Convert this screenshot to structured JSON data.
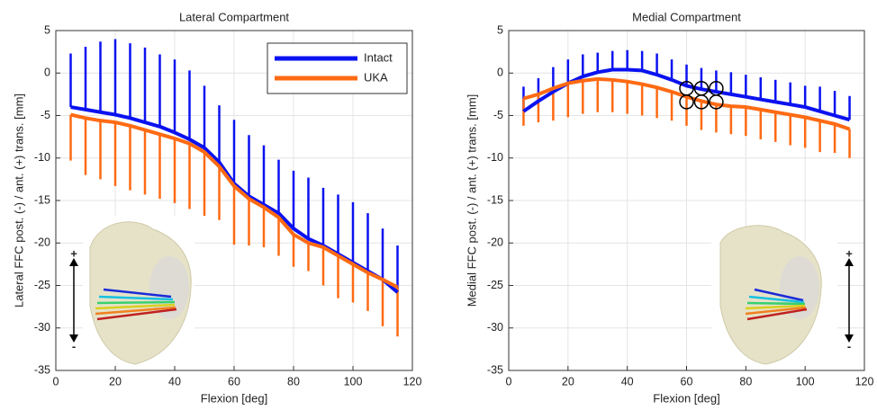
{
  "chart_data": [
    {
      "type": "line",
      "title": "Lateral Compartment",
      "xlabel": "Flexion [deg]",
      "ylabel": "Lateral FFC post. (-) / ant. (+) trans. [mm]",
      "x": [
        5,
        10,
        15,
        20,
        25,
        30,
        35,
        40,
        45,
        50,
        55,
        60,
        65,
        70,
        75,
        80,
        85,
        90,
        95,
        100,
        105,
        110,
        115
      ],
      "series": [
        {
          "name": "Intact",
          "color": "#0a12f0",
          "error_direction": "up",
          "values": [
            -4,
            -4.3,
            -4.6,
            -4.9,
            -5.3,
            -5.8,
            -6.3,
            -7,
            -7.8,
            -8.8,
            -10.5,
            -13,
            -14.5,
            -15.5,
            -16.5,
            -18.3,
            -19.5,
            -20.3,
            -21.3,
            -22.3,
            -23.3,
            -24.3,
            -25.8
          ],
          "errors": [
            6.3,
            7.4,
            8.3,
            8.9,
            8.8,
            8.8,
            8.5,
            8.6,
            8.1,
            7.3,
            6.7,
            7.5,
            7.2,
            7,
            6.3,
            6.8,
            7.2,
            6.8,
            7,
            7.1,
            6.8,
            6,
            5.5
          ]
        },
        {
          "name": "UKA",
          "color": "#ff6a13",
          "error_direction": "down",
          "values": [
            -4.9,
            -5.3,
            -5.6,
            -5.8,
            -6.2,
            -6.7,
            -7.2,
            -7.7,
            -8.3,
            -9.3,
            -11,
            -13.3,
            -14.8,
            -15.8,
            -17,
            -19,
            -20,
            -20.5,
            -21.5,
            -22.5,
            -23.5,
            -24.3,
            -25.2
          ],
          "errors": [
            5.4,
            6.7,
            6.9,
            7.5,
            7.6,
            7.6,
            7.6,
            7.6,
            7.7,
            7.5,
            6.3,
            6.9,
            5.5,
            4.7,
            4.5,
            3.8,
            3.3,
            4.5,
            5,
            4.5,
            4.5,
            5.5,
            5.8
          ]
        }
      ],
      "xlim": [
        0,
        120
      ],
      "xticks": [
        0,
        20,
        40,
        60,
        80,
        100,
        120
      ],
      "ylim": [
        -35,
        5
      ],
      "yticks": [
        -35,
        -30,
        -25,
        -20,
        -15,
        -10,
        -5,
        0,
        5
      ],
      "grid": true,
      "legend": "upper right",
      "inset": {
        "plus": "+",
        "minus": "-"
      }
    },
    {
      "type": "line",
      "title": "Medial Compartment",
      "xlabel": "Flexion [deg]",
      "ylabel": "Medial FFC post. (-) / ant. (+) trans. [mm]",
      "x": [
        5,
        10,
        15,
        20,
        25,
        30,
        35,
        40,
        45,
        50,
        55,
        60,
        65,
        70,
        75,
        80,
        85,
        90,
        95,
        100,
        105,
        110,
        115
      ],
      "series": [
        {
          "color": "#0a12f0",
          "error_direction": "up",
          "values": [
            -4.5,
            -3.3,
            -2.2,
            -1.2,
            -0.4,
            0.1,
            0.4,
            0.4,
            0.3,
            -0.2,
            -0.8,
            -1.5,
            -1.9,
            -2.2,
            -2.5,
            -2.8,
            -3.1,
            -3.4,
            -3.7,
            -4,
            -4.5,
            -5,
            -5.5
          ],
          "errors": [
            2.9,
            2.7,
            2.9,
            2.8,
            2.6,
            2.3,
            2.2,
            2.3,
            2.3,
            2.5,
            2.4,
            2.5,
            2.5,
            2.5,
            2.6,
            2.6,
            2.6,
            2.6,
            2.6,
            2.5,
            2.9,
            2.9,
            2.8
          ]
        },
        {
          "color": "#ff6a13",
          "error_direction": "down",
          "values": [
            -3,
            -2.5,
            -1.8,
            -1.2,
            -0.9,
            -0.7,
            -0.8,
            -1,
            -1.3,
            -1.7,
            -2.2,
            -2.8,
            -3.3,
            -3.7,
            -3.9,
            -4,
            -4.3,
            -4.6,
            -4.9,
            -5.2,
            -5.6,
            -6,
            -6.6
          ],
          "errors": [
            3.2,
            3.3,
            3.8,
            4,
            3.9,
            3.9,
            3.8,
            3.8,
            3.7,
            3.6,
            3.4,
            3.4,
            3.4,
            3.3,
            3.3,
            3.4,
            3.5,
            3.5,
            3.6,
            3.6,
            3.7,
            3.4,
            3.4
          ]
        }
      ],
      "markers": {
        "x": [
          60,
          65,
          70,
          60,
          65,
          70
        ],
        "y": [
          -1.8,
          -1.8,
          -1.8,
          -3.4,
          -3.4,
          -3.4
        ]
      },
      "xlim": [
        0,
        120
      ],
      "xticks": [
        0,
        20,
        40,
        60,
        80,
        100,
        120
      ],
      "ylim": [
        -35,
        5
      ],
      "yticks": [
        -35,
        -30,
        -25,
        -20,
        -15,
        -10,
        -5,
        0,
        5
      ],
      "grid": true,
      "inset": {
        "plus": "+",
        "minus": "-"
      }
    }
  ]
}
